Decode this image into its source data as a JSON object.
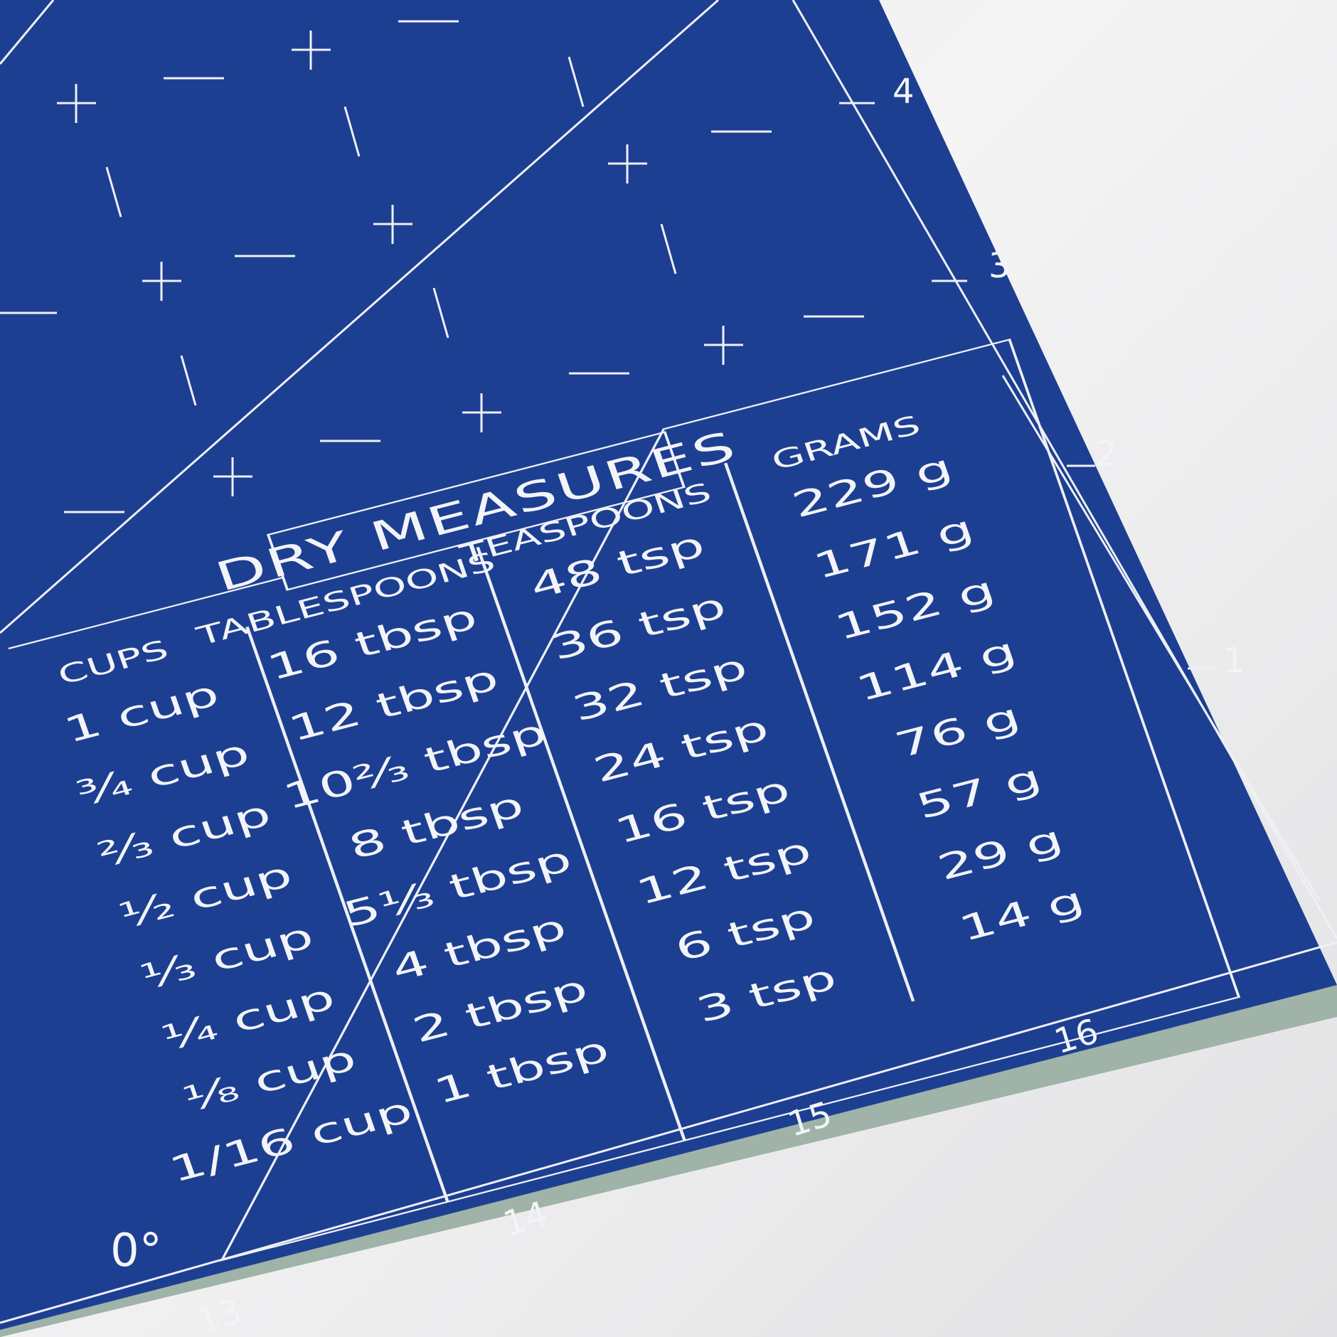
{
  "mat": {
    "color": "#1d3f92",
    "title": "DRY MEASURES",
    "columns": [
      {
        "header": "CUPS",
        "values": [
          "1 cup",
          "¾ cup",
          "⅔ cup",
          "½ cup",
          "⅓ cup",
          "¼ cup",
          "⅛ cup",
          "1/16 cup"
        ]
      },
      {
        "header": "TABLESPOONS",
        "values": [
          "16 tbsp",
          "12 tbsp",
          "10⅔ tbsp",
          "8 tbsp",
          "5⅓ tbsp",
          "4 tbsp",
          "2 tbsp",
          "1 tbsp"
        ]
      },
      {
        "header": "TEASPOONS",
        "values": [
          "48 tsp",
          "36 tsp",
          "32 tsp",
          "24 tsp",
          "16 tsp",
          "12 tsp",
          "6 tsp",
          "3 tsp"
        ]
      },
      {
        "header": "GRAMS",
        "values": [
          "229 g",
          "171 g",
          "152 g",
          "114 g",
          "76 g",
          "57 g",
          "29 g",
          "14 g"
        ]
      }
    ],
    "ruler_bottom": [
      "13",
      "14",
      "15",
      "16"
    ],
    "ruler_right": [
      "1",
      "2",
      "3",
      "4"
    ],
    "angle_label": "0°"
  }
}
